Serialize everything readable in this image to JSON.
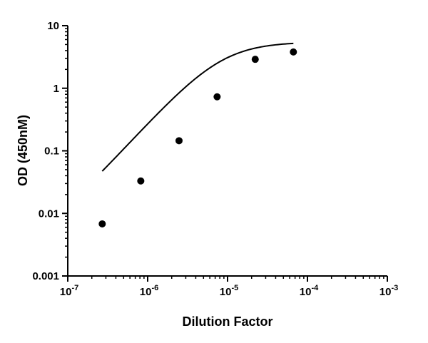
{
  "chart_data": {
    "type": "scatter",
    "xlabel": "Dilution Factor",
    "ylabel": "OD (450nM)",
    "x_scale": "log",
    "y_scale": "log",
    "xlim": [
      1e-07,
      0.001
    ],
    "ylim": [
      0.001,
      10
    ],
    "x_ticks": [
      {
        "value": 1e-07,
        "base": "10",
        "exp": "-7"
      },
      {
        "value": 1e-06,
        "base": "10",
        "exp": "-6"
      },
      {
        "value": 1e-05,
        "base": "10",
        "exp": "-5"
      },
      {
        "value": 0.0001,
        "base": "10",
        "exp": "-4"
      },
      {
        "value": 0.001,
        "base": "10",
        "exp": "-3"
      }
    ],
    "y_ticks": [
      {
        "value": 10,
        "label": "10"
      },
      {
        "value": 1,
        "label": "1"
      },
      {
        "value": 0.1,
        "label": "0.1"
      },
      {
        "value": 0.01,
        "label": "0.01"
      },
      {
        "value": 0.001,
        "label": "0.001"
      }
    ],
    "grid": false,
    "series": [
      {
        "points": [
          {
            "x": 2.7e-07,
            "y": 0.0068
          },
          {
            "x": 8.2e-07,
            "y": 0.033
          },
          {
            "x": 2.47e-06,
            "y": 0.145
          },
          {
            "x": 7.4e-06,
            "y": 0.73
          },
          {
            "x": 2.22e-05,
            "y": 2.9
          },
          {
            "x": 6.67e-05,
            "y": 3.8
          }
        ]
      }
    ],
    "fit_curve": {
      "model": "4PL",
      "bottom": 0.003,
      "top": 5.5,
      "ec50": 8.4e-06,
      "hill": 1.4,
      "x_range": [
        2.7e-07,
        6.67e-05
      ]
    },
    "colors": {
      "marker": "#000000",
      "axis": "#000000",
      "curve": "#000000"
    }
  }
}
